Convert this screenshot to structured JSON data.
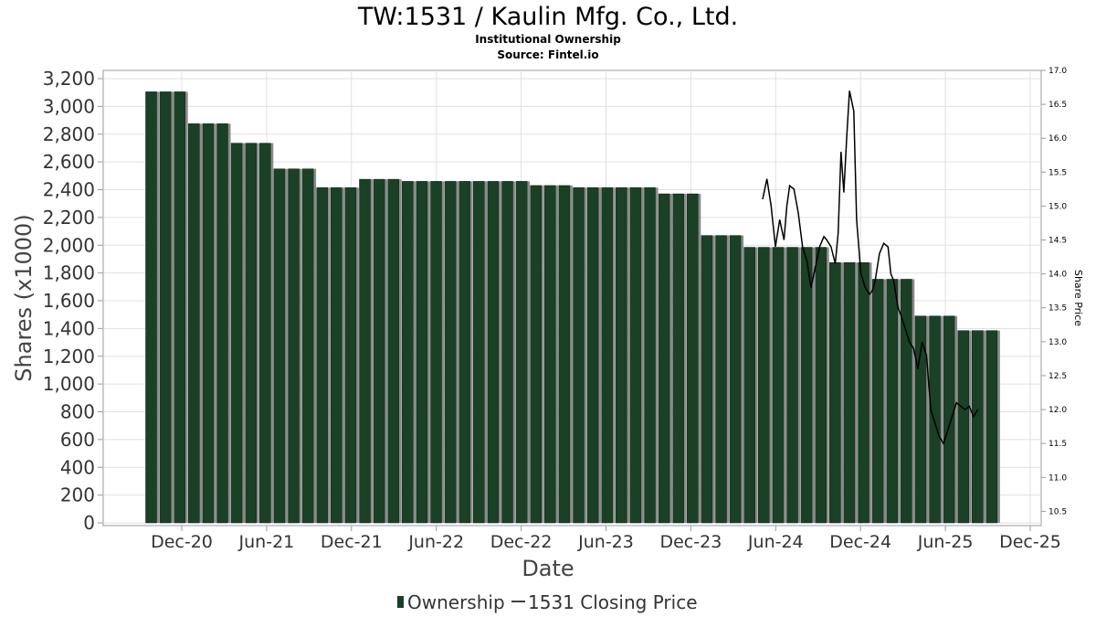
{
  "chart_data": {
    "type": "bar",
    "title": "TW:1531 / Kaulin Mfg. Co., Ltd.",
    "subtitle": "Institutional Ownership",
    "source": "Source: Fintel.io",
    "xlabel": "Date",
    "ylabel": "Shares (x1000)",
    "y2label": "Share Price",
    "ylim": [
      0,
      3300
    ],
    "y2lim": [
      10.33,
      17.0
    ],
    "yticks": [
      "0",
      "200",
      "400",
      "600",
      "800",
      "1,000",
      "1,200",
      "1,400",
      "1,600",
      "1,800",
      "2,000",
      "2,200",
      "2,400",
      "2,600",
      "2,800",
      "3,000",
      "3,200"
    ],
    "y2ticks": [
      "10.5",
      "11.0",
      "11.5",
      "12.0",
      "12.5",
      "13.0",
      "13.5",
      "14.0",
      "14.5",
      "15.0",
      "15.5",
      "16.0",
      "16.5",
      "17.0"
    ],
    "xticks": [
      "Dec-20",
      "Jun-21",
      "Dec-21",
      "Jun-22",
      "Dec-22",
      "Jun-23",
      "Dec-23",
      "Jun-24",
      "Dec-24",
      "Jun-25",
      "Dec-25"
    ],
    "grid": true,
    "legend": "bottom-center",
    "series": [
      {
        "name": "Ownership",
        "color": "#1a4026",
        "values": [
          3105,
          3105,
          3105,
          2875,
          2875,
          2875,
          2735,
          2735,
          2735,
          2550,
          2550,
          2550,
          2415,
          2415,
          2415,
          2475,
          2475,
          2475,
          2460,
          2460,
          2460,
          2460,
          2460,
          2460,
          2460,
          2460,
          2460,
          2430,
          2430,
          2430,
          2415,
          2415,
          2415,
          2415,
          2415,
          2415,
          2370,
          2370,
          2370,
          2070,
          2070,
          2070,
          1985,
          1985,
          1985,
          1985,
          1985,
          1985,
          1875,
          1875,
          1875,
          1755,
          1755,
          1755,
          1490,
          1490,
          1490,
          1385,
          1385,
          1385
        ]
      },
      {
        "name": "1531 Closing Price",
        "color": "#000000",
        "x_month_index": [
          43.3,
          43.6,
          43.9,
          44.2,
          44.5,
          44.8,
          45.0,
          45.2,
          45.5,
          45.8,
          46.1,
          46.4,
          46.7,
          47.0,
          47.3,
          47.6,
          47.8,
          48.1,
          48.4,
          48.6,
          48.8,
          49.0,
          49.2,
          49.4,
          49.7,
          49.9,
          50.2,
          50.5,
          50.8,
          51.0,
          51.2,
          51.5,
          51.8,
          52.1,
          52.3,
          52.5,
          52.8,
          53.0,
          53.3,
          53.6,
          53.9,
          54.2,
          54.5,
          54.8,
          55.1,
          55.4,
          55.7,
          56.0,
          56.3,
          56.6,
          56.9,
          57.2,
          57.5,
          57.8,
          58.1,
          58.4
        ],
        "values": [
          15.1,
          15.4,
          15.0,
          14.4,
          14.8,
          14.5,
          15.0,
          15.3,
          15.25,
          14.9,
          14.4,
          14.2,
          13.8,
          14.1,
          14.4,
          14.55,
          14.5,
          14.4,
          14.15,
          14.6,
          15.8,
          15.2,
          16.0,
          16.7,
          16.4,
          14.8,
          14.0,
          13.8,
          13.7,
          13.75,
          13.9,
          14.3,
          14.45,
          14.4,
          14.0,
          13.9,
          13.5,
          13.4,
          13.2,
          13.0,
          12.9,
          12.6,
          13.0,
          12.8,
          12.0,
          11.8,
          11.6,
          11.5,
          11.7,
          11.9,
          12.1,
          12.05,
          12.0,
          12.05,
          11.9,
          12.0
        ]
      }
    ],
    "legend_entries": [
      {
        "marker": "bar",
        "label": "Ownership",
        "color": "#1a4026"
      },
      {
        "marker": "line",
        "label": "1531 Closing Price",
        "color": "#000000"
      }
    ]
  }
}
